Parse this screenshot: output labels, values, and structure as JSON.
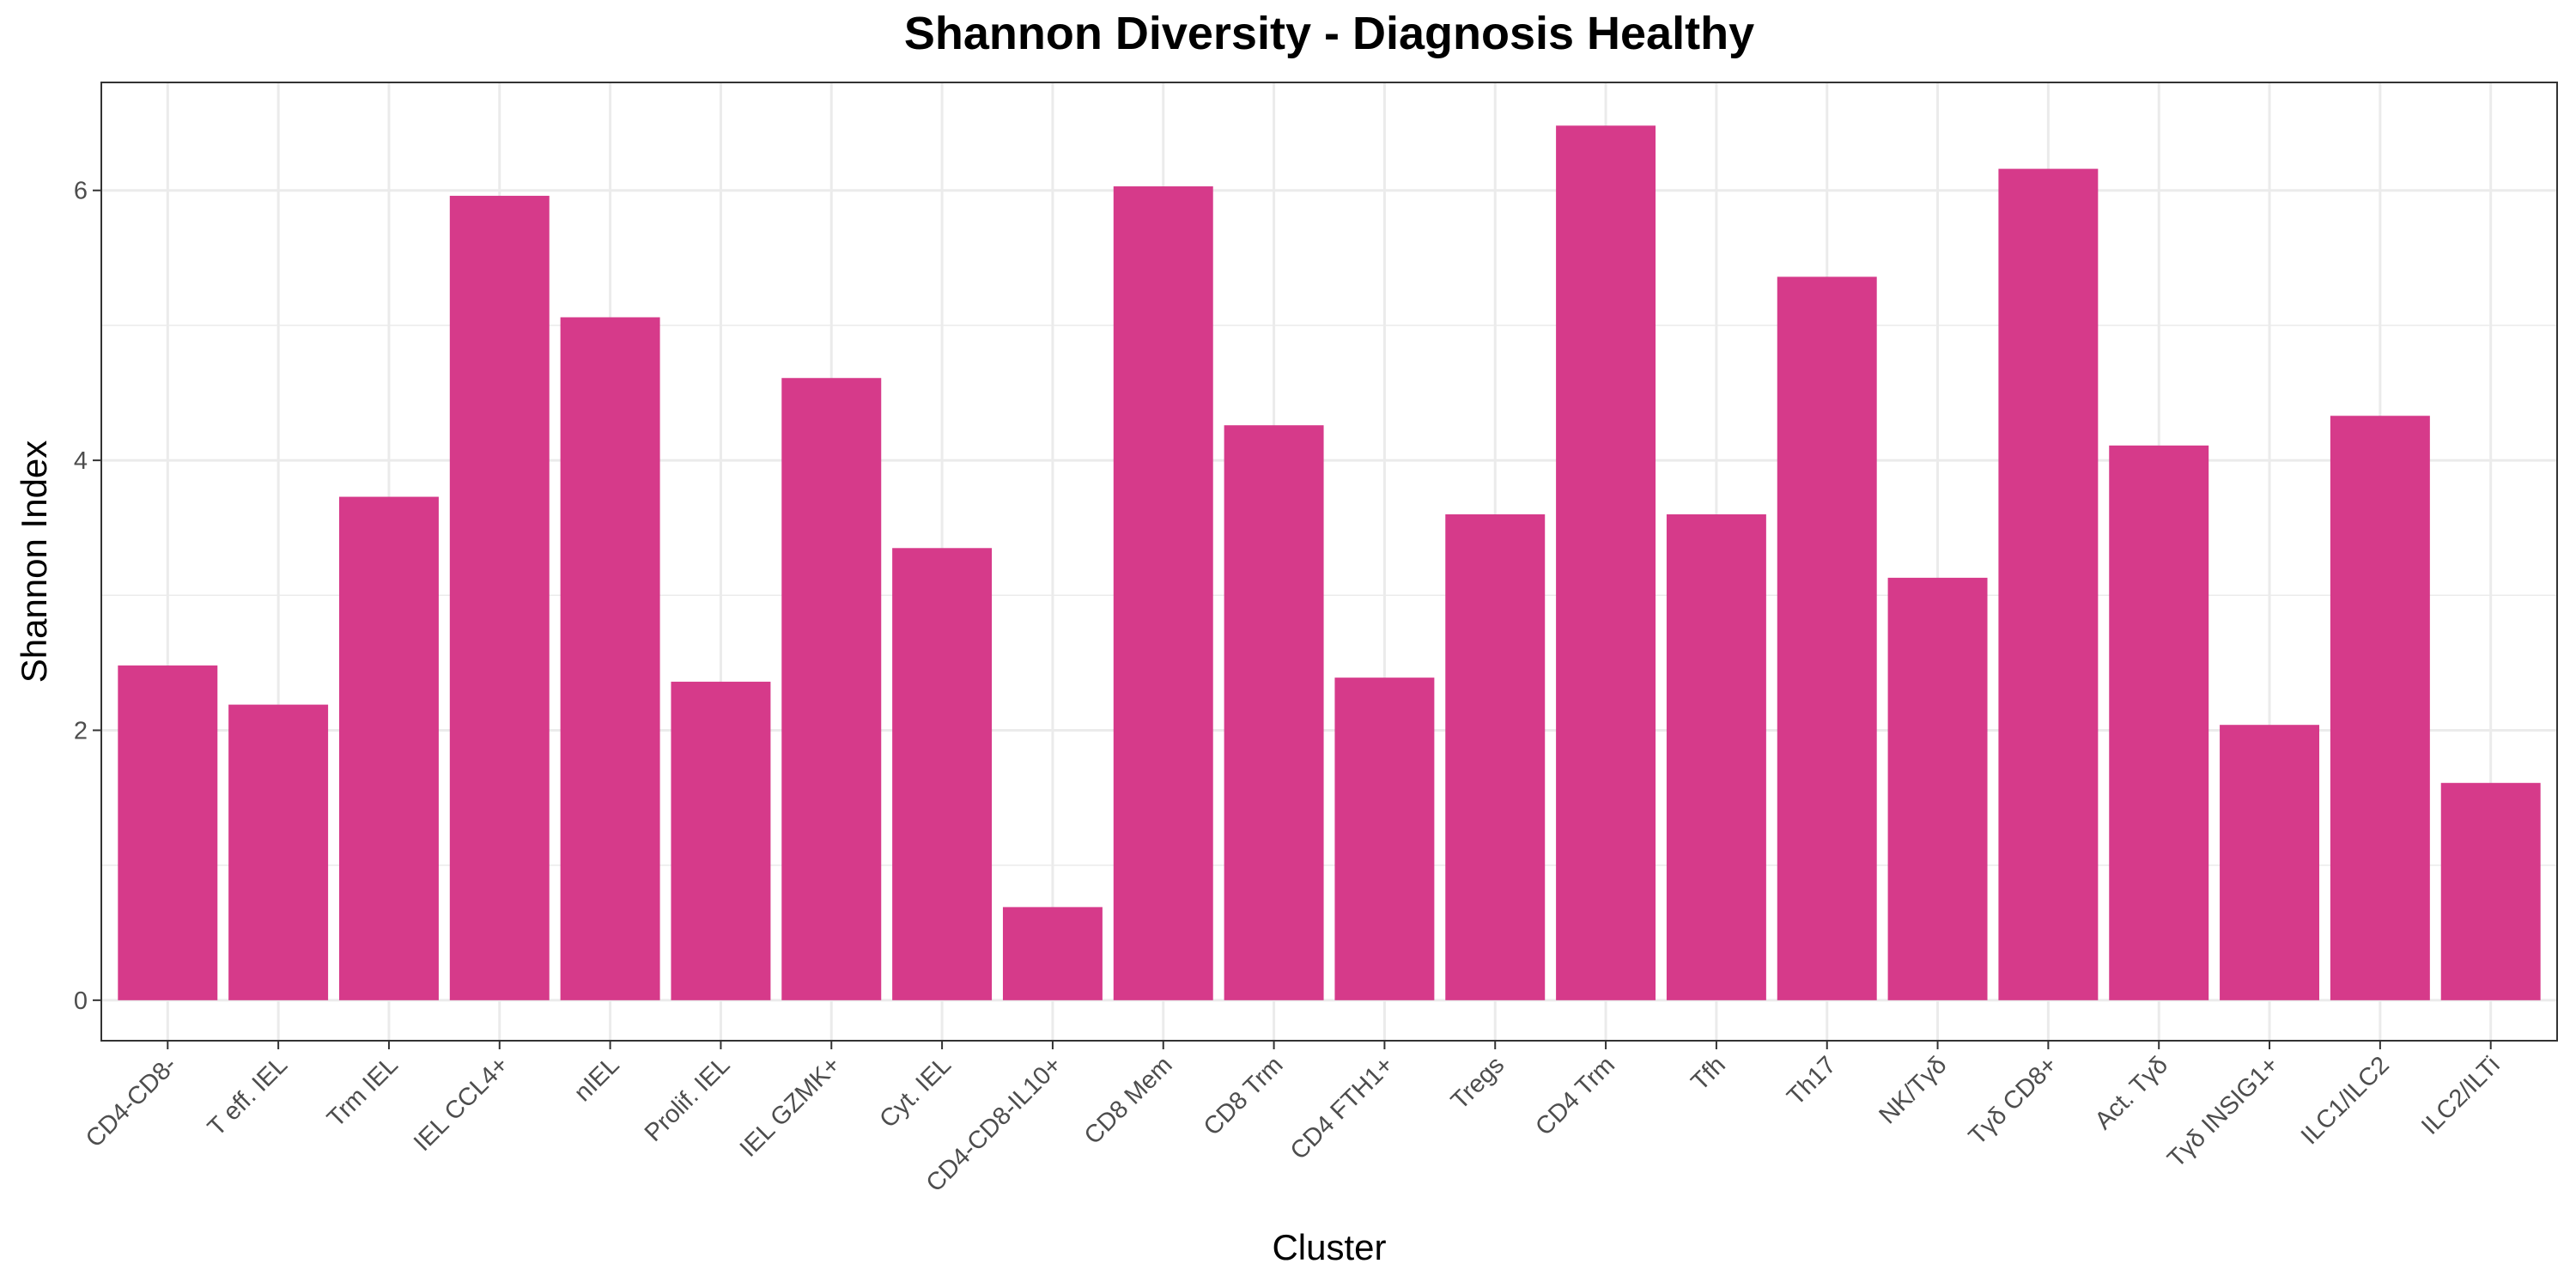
{
  "chart_data": {
    "type": "bar",
    "title": "Shannon Diversity - Diagnosis Healthy",
    "xlabel": "Cluster",
    "ylabel": "Shannon Index",
    "ylim": [
      -0.3,
      6.8
    ],
    "yticks": [
      0,
      2,
      4,
      6
    ],
    "ytick_labels": [
      "0",
      "2",
      "4",
      "6"
    ],
    "grid": true,
    "legend": "none",
    "bar_color": "#D63A8A",
    "categories": [
      "CD4-CD8-",
      "T eff. IEL",
      "Trm IEL",
      "IEL CCL4+",
      "nIEL",
      "Prolif. IEL",
      "IEL GZMK+",
      "Cyt. IEL",
      "CD4-CD8-IL10+",
      "CD8 Mem",
      "CD8 Trm",
      "CD4 FTH1+",
      "Tregs",
      "CD4 Trm",
      "Tfh",
      "Th17",
      "NK/Tγδ",
      "Tγδ CD8+",
      "Act. Tγδ",
      "Tγδ INSIG1+",
      "ILC1/ILC2",
      "ILC2/ILTi"
    ],
    "values": [
      2.48,
      2.19,
      3.73,
      5.96,
      5.06,
      2.36,
      4.61,
      3.35,
      0.69,
      6.03,
      4.26,
      2.39,
      3.6,
      6.48,
      3.6,
      5.36,
      3.13,
      6.16,
      4.11,
      2.04,
      4.33,
      1.61
    ]
  }
}
